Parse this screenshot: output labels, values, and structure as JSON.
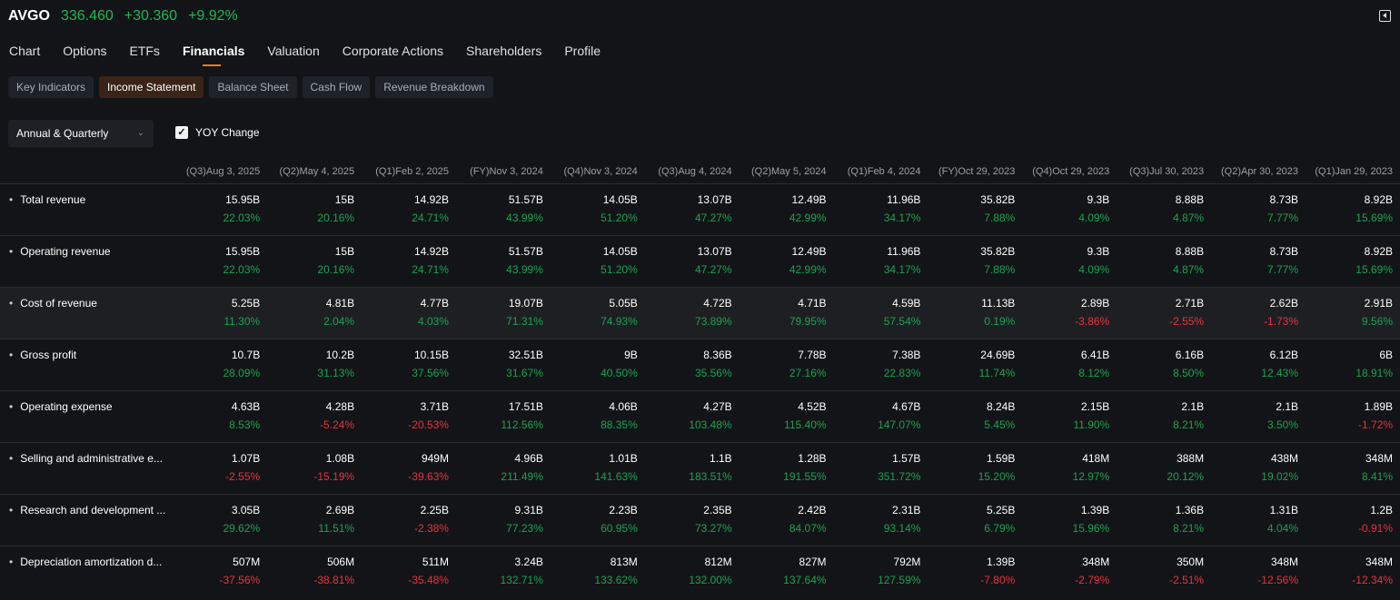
{
  "quote": {
    "symbol": "AVGO",
    "price": "336.460",
    "change": "+30.360",
    "change_pct": "+9.92%"
  },
  "nav": [
    "Chart",
    "Options",
    "ETFs",
    "Financials",
    "Valuation",
    "Corporate Actions",
    "Shareholders",
    "Profile"
  ],
  "nav_active": 3,
  "subtabs": [
    "Key Indicators",
    "Income Statement",
    "Balance Sheet",
    "Cash Flow",
    "Revenue Breakdown"
  ],
  "subtab_active": 1,
  "period_select": "Annual & Quarterly",
  "yoy_label": "YOY Change",
  "yoy_checked": true,
  "colors": {
    "positive": "#1aa350",
    "negative": "#e8323c",
    "accent": "#f07c1e"
  },
  "columns": [
    "(Q3)Aug 3, 2025",
    "(Q2)May 4, 2025",
    "(Q1)Feb 2, 2025",
    "(FY)Nov 3, 2024",
    "(Q4)Nov 3, 2024",
    "(Q3)Aug 4, 2024",
    "(Q2)May 5, 2024",
    "(Q1)Feb 4, 2024",
    "(FY)Oct 29, 2023",
    "(Q4)Oct 29, 2023",
    "(Q3)Jul 30, 2023",
    "(Q2)Apr 30, 2023",
    "(Q1)Jan 29, 2023"
  ],
  "rows": [
    {
      "label": "Total revenue",
      "values": [
        "15.95B",
        "15B",
        "14.92B",
        "51.57B",
        "14.05B",
        "13.07B",
        "12.49B",
        "11.96B",
        "35.82B",
        "9.3B",
        "8.88B",
        "8.73B",
        "8.92B"
      ],
      "yoy": [
        "22.03%",
        "20.16%",
        "24.71%",
        "43.99%",
        "51.20%",
        "47.27%",
        "42.99%",
        "34.17%",
        "7.88%",
        "4.09%",
        "4.87%",
        "7.77%",
        "15.69%"
      ]
    },
    {
      "label": "Operating revenue",
      "values": [
        "15.95B",
        "15B",
        "14.92B",
        "51.57B",
        "14.05B",
        "13.07B",
        "12.49B",
        "11.96B",
        "35.82B",
        "9.3B",
        "8.88B",
        "8.73B",
        "8.92B"
      ],
      "yoy": [
        "22.03%",
        "20.16%",
        "24.71%",
        "43.99%",
        "51.20%",
        "47.27%",
        "42.99%",
        "34.17%",
        "7.88%",
        "4.09%",
        "4.87%",
        "7.77%",
        "15.69%"
      ]
    },
    {
      "label": "Cost of revenue",
      "values": [
        "5.25B",
        "4.81B",
        "4.77B",
        "19.07B",
        "5.05B",
        "4.72B",
        "4.71B",
        "4.59B",
        "11.13B",
        "2.89B",
        "2.71B",
        "2.62B",
        "2.91B"
      ],
      "yoy": [
        "11.30%",
        "2.04%",
        "4.03%",
        "71.31%",
        "74.93%",
        "73.89%",
        "79.95%",
        "57.54%",
        "0.19%",
        "-3.86%",
        "-2.55%",
        "-1.73%",
        "9.56%"
      ]
    },
    {
      "label": "Gross profit",
      "values": [
        "10.7B",
        "10.2B",
        "10.15B",
        "32.51B",
        "9B",
        "8.36B",
        "7.78B",
        "7.38B",
        "24.69B",
        "6.41B",
        "6.16B",
        "6.12B",
        "6B"
      ],
      "yoy": [
        "28.09%",
        "31.13%",
        "37.56%",
        "31.67%",
        "40.50%",
        "35.56%",
        "27.16%",
        "22.83%",
        "11.74%",
        "8.12%",
        "8.50%",
        "12.43%",
        "18.91%"
      ]
    },
    {
      "label": "Operating expense",
      "values": [
        "4.63B",
        "4.28B",
        "3.71B",
        "17.51B",
        "4.06B",
        "4.27B",
        "4.52B",
        "4.67B",
        "8.24B",
        "2.15B",
        "2.1B",
        "2.1B",
        "1.89B"
      ],
      "yoy": [
        "8.53%",
        "-5.24%",
        "-20.53%",
        "112.56%",
        "88.35%",
        "103.48%",
        "115.40%",
        "147.07%",
        "5.45%",
        "11.90%",
        "8.21%",
        "3.50%",
        "-1.72%"
      ]
    },
    {
      "label": "Selling and administrative e...",
      "values": [
        "1.07B",
        "1.08B",
        "949M",
        "4.96B",
        "1.01B",
        "1.1B",
        "1.28B",
        "1.57B",
        "1.59B",
        "418M",
        "388M",
        "438M",
        "348M"
      ],
      "yoy": [
        "-2.55%",
        "-15.19%",
        "-39.63%",
        "211.49%",
        "141.63%",
        "183.51%",
        "191.55%",
        "351.72%",
        "15.20%",
        "12.97%",
        "20.12%",
        "19.02%",
        "8.41%"
      ]
    },
    {
      "label": "Research and development ...",
      "values": [
        "3.05B",
        "2.69B",
        "2.25B",
        "9.31B",
        "2.23B",
        "2.35B",
        "2.42B",
        "2.31B",
        "5.25B",
        "1.39B",
        "1.36B",
        "1.31B",
        "1.2B"
      ],
      "yoy": [
        "29.62%",
        "11.51%",
        "-2.38%",
        "77.23%",
        "60.95%",
        "73.27%",
        "84.07%",
        "93.14%",
        "6.79%",
        "15.96%",
        "8.21%",
        "4.04%",
        "-0.91%"
      ]
    },
    {
      "label": "Depreciation amortization d...",
      "values": [
        "507M",
        "506M",
        "511M",
        "3.24B",
        "813M",
        "812M",
        "827M",
        "792M",
        "1.39B",
        "348M",
        "350M",
        "348M",
        "348M"
      ],
      "yoy": [
        "-37.56%",
        "-38.81%",
        "-35.48%",
        "132.71%",
        "133.62%",
        "132.00%",
        "137.64%",
        "127.59%",
        "-7.80%",
        "-2.79%",
        "-2.51%",
        "-12.56%",
        "-12.34%"
      ]
    }
  ],
  "highlighted_row": 2
}
